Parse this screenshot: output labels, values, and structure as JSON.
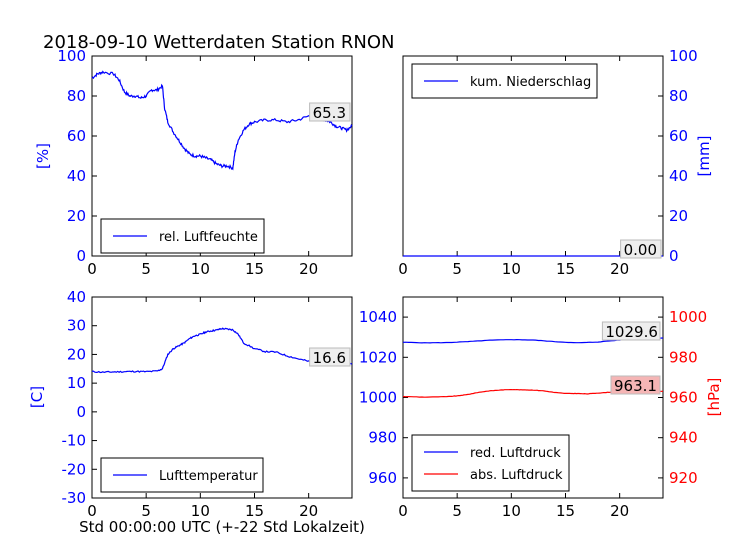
{
  "figure": {
    "title": "2018-09-10 Wetterdaten Station RNON",
    "xlabel": "Std 00:00:00 UTC (+-22 Std Lokalzeit)"
  },
  "colors": {
    "blue": "#0000ff",
    "red": "#ff0000",
    "label_box_red": "#f5b5b5"
  },
  "chart_data": [
    {
      "type": "line",
      "id": "humidity",
      "ylabel": "[%]",
      "xlim": [
        0,
        24
      ],
      "ylim": [
        0,
        100
      ],
      "xticks": [
        0,
        5,
        10,
        15,
        20
      ],
      "yticks": [
        0,
        20,
        40,
        60,
        80,
        100
      ],
      "legend": {
        "location": "lower-left",
        "entries": [
          "rel. Luftfeuchte"
        ]
      },
      "last_value_label": "65.3",
      "series": [
        {
          "name": "rel. Luftfeuchte",
          "color": "#0000ff",
          "x": [
            0,
            0.5,
            1,
            2,
            2.5,
            3,
            3.5,
            4,
            4.5,
            5,
            5.5,
            6,
            6.5,
            6.7,
            7,
            7.5,
            8,
            8.5,
            9,
            9.5,
            10,
            10.5,
            11,
            11.5,
            12,
            12.5,
            13,
            13.2,
            13.5,
            14,
            14.5,
            15,
            16,
            17,
            18,
            19,
            20,
            20.5,
            21,
            21.5,
            22,
            22.5,
            23,
            23.5,
            24
          ],
          "y": [
            89,
            91,
            92,
            91,
            88,
            82,
            80,
            80,
            79,
            80,
            83,
            83,
            85,
            74,
            67,
            62,
            58,
            54,
            51,
            50,
            50,
            49,
            48,
            46,
            45,
            45,
            44,
            52,
            58,
            63,
            66,
            67,
            68,
            68,
            67,
            68,
            70,
            71,
            70,
            68,
            67,
            65,
            64,
            63,
            65
          ]
        }
      ]
    },
    {
      "type": "line",
      "id": "precipitation",
      "ylabel": "[mm]",
      "xlim": [
        0,
        24
      ],
      "ylim": [
        0,
        100
      ],
      "xticks": [
        0,
        5,
        10,
        15,
        20
      ],
      "yticks": [
        0,
        20,
        40,
        60,
        80,
        100
      ],
      "legend": {
        "location": "top-left",
        "entries": [
          "kum. Niederschlag"
        ]
      },
      "last_value_label": "0.00",
      "series": [
        {
          "name": "kum. Niederschlag",
          "color": "#0000ff",
          "x": [
            0,
            24
          ],
          "y": [
            0,
            0
          ]
        }
      ]
    },
    {
      "type": "line",
      "id": "temperature",
      "ylabel": "[C]",
      "xlim": [
        0,
        24
      ],
      "ylim": [
        -30,
        40
      ],
      "xticks": [
        0,
        5,
        10,
        15,
        20
      ],
      "yticks": [
        -30,
        -20,
        -10,
        0,
        10,
        20,
        30,
        40
      ],
      "legend": {
        "location": "lower-left",
        "entries": [
          "Lufttemperatur"
        ]
      },
      "last_value_label": "16.6",
      "series": [
        {
          "name": "Lufttemperatur",
          "color": "#0000ff",
          "x": [
            0,
            1,
            2,
            3,
            4,
            5,
            6,
            6.5,
            7,
            7.5,
            8,
            8.5,
            9,
            9.5,
            10,
            10.5,
            11,
            11.5,
            12,
            12.5,
            13,
            13.5,
            14,
            15,
            16,
            17,
            18,
            19,
            20,
            21,
            22,
            23,
            24
          ],
          "y": [
            14,
            13.8,
            13.9,
            14,
            14.1,
            14,
            14.2,
            15,
            20,
            22,
            23,
            24,
            25.5,
            26.5,
            27,
            27.8,
            28.2,
            28.5,
            29,
            28.8,
            28.6,
            27,
            24,
            22,
            21,
            20.8,
            19.5,
            18.5,
            17.6,
            17.2,
            16.8,
            16.6,
            16.6
          ]
        }
      ]
    },
    {
      "type": "line",
      "id": "pressure",
      "ylabel_right": "[hPa]",
      "xlim": [
        0,
        24
      ],
      "ylim_left": [
        950,
        1050
      ],
      "ylim_right": [
        910,
        1010
      ],
      "xticks": [
        0,
        5,
        10,
        15,
        20
      ],
      "yticks_left": [
        960,
        980,
        1000,
        1020,
        1040
      ],
      "yticks_right": [
        920,
        940,
        960,
        980,
        1000
      ],
      "legend": {
        "location": "lower-left",
        "entries": [
          "red. Luftdruck",
          "abs. Luftdruck"
        ]
      },
      "last_value_labels": [
        "1029.6",
        "963.1"
      ],
      "series": [
        {
          "name": "red. Luftdruck",
          "color": "#0000ff",
          "axis": "left",
          "x": [
            0,
            2,
            4,
            6,
            8,
            10,
            12,
            14,
            16,
            18,
            20,
            22,
            24
          ],
          "y": [
            1027.5,
            1027.2,
            1027.3,
            1027.8,
            1028.5,
            1028.8,
            1028.6,
            1027.8,
            1027.2,
            1027.6,
            1028.6,
            1029.2,
            1029.6
          ]
        },
        {
          "name": "abs. Luftdruck",
          "color": "#ff0000",
          "axis": "right",
          "x": [
            0,
            2,
            4,
            5,
            6,
            7,
            8,
            9,
            10,
            11,
            12,
            13,
            14,
            15,
            16,
            17,
            18,
            19,
            20,
            21,
            22,
            23,
            24
          ],
          "y": [
            960.5,
            960.2,
            960.4,
            960.8,
            961.5,
            962.6,
            963.3,
            963.7,
            964,
            963.8,
            963.7,
            963.3,
            962.5,
            962,
            962,
            961.8,
            962.2,
            962.6,
            963,
            963.1,
            963.1,
            963.0,
            963.1
          ]
        }
      ]
    }
  ]
}
